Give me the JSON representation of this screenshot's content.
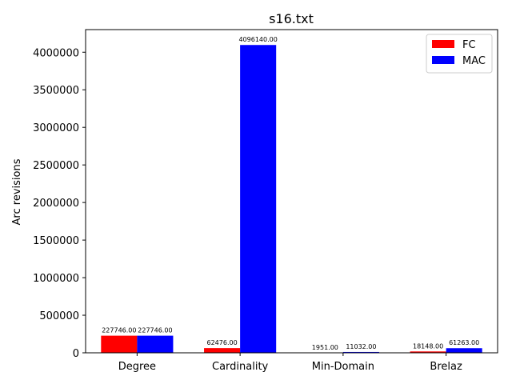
{
  "chart_data": {
    "type": "bar",
    "title": "s16.txt",
    "xlabel": "",
    "ylabel": "Arc revisions",
    "categories": [
      "Degree",
      "Cardinality",
      "Min-Domain",
      "Brelaz"
    ],
    "series": [
      {
        "name": "FC",
        "color": "#ff0000",
        "values": [
          227746,
          62476,
          1951,
          18148
        ],
        "labels": [
          "227746.00",
          "62476.00",
          "1951.00",
          "18148.00"
        ]
      },
      {
        "name": "MAC",
        "color": "#0000ff",
        "values": [
          227746,
          4096140,
          11032,
          61263
        ],
        "labels": [
          "227746.00",
          "4096140.00",
          "11032.00",
          "61263.00"
        ]
      }
    ],
    "ylim": [
      0,
      4300947
    ],
    "yticks": [
      0,
      500000,
      1000000,
      1500000,
      2000000,
      2500000,
      3000000,
      3500000,
      4000000
    ],
    "ytick_labels": [
      "0",
      "500000",
      "1000000",
      "1500000",
      "2000000",
      "2500000",
      "3000000",
      "3500000",
      "4000000"
    ],
    "legend_position": "top-right",
    "grid": false
  }
}
